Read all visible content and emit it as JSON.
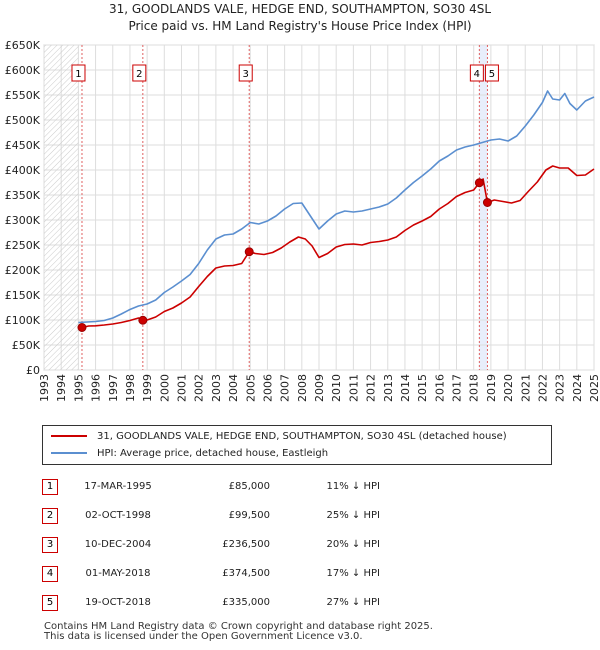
{
  "header": {
    "line1": "31, GOODLANDS VALE, HEDGE END, SOUTHAMPTON, SO30 4SL",
    "line2": "Price paid vs. HM Land Registry's House Price Index (HPI)"
  },
  "chart_data": {
    "type": "line",
    "title": "31, GOODLANDS VALE, HEDGE END, SOUTHAMPTON, SO30 4SL — Price paid vs. HM Land Registry's House Price Index (HPI)",
    "xlim": [
      1993,
      2025
    ],
    "ylim": [
      0,
      650000
    ],
    "grid": true,
    "x_ticks": [
      "1993",
      "1994",
      "1995",
      "1996",
      "1997",
      "1998",
      "1999",
      "2000",
      "2001",
      "2002",
      "2003",
      "2004",
      "2005",
      "2006",
      "2007",
      "2008",
      "2009",
      "2010",
      "2011",
      "2012",
      "2013",
      "2014",
      "2015",
      "2016",
      "2017",
      "2018",
      "2019",
      "2020",
      "2021",
      "2022",
      "2023",
      "2024",
      "2025"
    ],
    "y_ticks": [
      {
        "value": 0,
        "label": "£0"
      },
      {
        "value": 50000,
        "label": "£50K"
      },
      {
        "value": 100000,
        "label": "£100K"
      },
      {
        "value": 150000,
        "label": "£150K"
      },
      {
        "value": 200000,
        "label": "£200K"
      },
      {
        "value": 250000,
        "label": "£250K"
      },
      {
        "value": 300000,
        "label": "£300K"
      },
      {
        "value": 350000,
        "label": "£350K"
      },
      {
        "value": 400000,
        "label": "£400K"
      },
      {
        "value": 450000,
        "label": "£450K"
      },
      {
        "value": 500000,
        "label": "£500K"
      },
      {
        "value": 550000,
        "label": "£550K"
      },
      {
        "value": 600000,
        "label": "£600K"
      },
      {
        "value": 650000,
        "label": "£650K"
      }
    ],
    "series": [
      {
        "name": "31, GOODLANDS VALE, HEDGE END, SOUTHAMPTON, SO30 4SL (detached house)",
        "color": "#cc0000",
        "points": [
          [
            1995.2,
            85000
          ],
          [
            1995.6,
            88000
          ],
          [
            1996,
            88500
          ],
          [
            1996.5,
            90000
          ],
          [
            1997,
            92000
          ],
          [
            1997.5,
            95000
          ],
          [
            1998,
            99000
          ],
          [
            1998.5,
            104000
          ],
          [
            1998.75,
            99500
          ],
          [
            1999,
            100000
          ],
          [
            1999.5,
            106000
          ],
          [
            2000,
            117000
          ],
          [
            2000.5,
            124000
          ],
          [
            2001,
            134000
          ],
          [
            2001.5,
            146000
          ],
          [
            2002,
            167000
          ],
          [
            2002.5,
            187000
          ],
          [
            2003,
            204000
          ],
          [
            2003.5,
            208000
          ],
          [
            2004,
            209000
          ],
          [
            2004.5,
            213000
          ],
          [
            2004.94,
            236500
          ],
          [
            2005.3,
            233000
          ],
          [
            2005.8,
            231000
          ],
          [
            2006.3,
            235000
          ],
          [
            2006.8,
            244000
          ],
          [
            2007.3,
            256000
          ],
          [
            2007.8,
            266000
          ],
          [
            2008.2,
            262000
          ],
          [
            2008.6,
            248000
          ],
          [
            2009,
            225000
          ],
          [
            2009.5,
            233000
          ],
          [
            2010,
            246000
          ],
          [
            2010.5,
            251000
          ],
          [
            2011,
            252000
          ],
          [
            2011.5,
            250000
          ],
          [
            2012,
            255000
          ],
          [
            2012.5,
            257000
          ],
          [
            2013,
            260000
          ],
          [
            2013.5,
            266000
          ],
          [
            2014,
            279000
          ],
          [
            2014.5,
            290000
          ],
          [
            2015,
            298000
          ],
          [
            2015.5,
            307000
          ],
          [
            2016,
            322000
          ],
          [
            2016.5,
            333000
          ],
          [
            2017,
            347000
          ],
          [
            2017.5,
            355000
          ],
          [
            2018,
            360000
          ],
          [
            2018.33,
            374500
          ],
          [
            2018.55,
            382000
          ],
          [
            2018.8,
            335000
          ],
          [
            2019.2,
            340000
          ],
          [
            2019.7,
            337000
          ],
          [
            2020.2,
            334000
          ],
          [
            2020.7,
            339000
          ],
          [
            2021.2,
            358000
          ],
          [
            2021.7,
            376000
          ],
          [
            2022.2,
            400000
          ],
          [
            2022.6,
            408000
          ],
          [
            2023,
            404000
          ],
          [
            2023.5,
            404000
          ],
          [
            2024,
            389000
          ],
          [
            2024.5,
            390000
          ],
          [
            2025,
            402000
          ]
        ]
      },
      {
        "name": "HPI: Average price, detached house, Eastleigh",
        "color": "#5b8fd0",
        "points": [
          [
            1995,
            95000
          ],
          [
            1995.5,
            96000
          ],
          [
            1996,
            97000
          ],
          [
            1996.5,
            99000
          ],
          [
            1997,
            104000
          ],
          [
            1997.5,
            112000
          ],
          [
            1998,
            121000
          ],
          [
            1998.5,
            128000
          ],
          [
            1999,
            132000
          ],
          [
            1999.5,
            140000
          ],
          [
            2000,
            155000
          ],
          [
            2000.5,
            166000
          ],
          [
            2001,
            178000
          ],
          [
            2001.5,
            191000
          ],
          [
            2002,
            213000
          ],
          [
            2002.5,
            240000
          ],
          [
            2003,
            262000
          ],
          [
            2003.5,
            270000
          ],
          [
            2004,
            272000
          ],
          [
            2004.5,
            282000
          ],
          [
            2005,
            295000
          ],
          [
            2005.5,
            292000
          ],
          [
            2006,
            298000
          ],
          [
            2006.5,
            308000
          ],
          [
            2007,
            322000
          ],
          [
            2007.5,
            333000
          ],
          [
            2008,
            334000
          ],
          [
            2008.5,
            308000
          ],
          [
            2009,
            282000
          ],
          [
            2009.5,
            298000
          ],
          [
            2010,
            312000
          ],
          [
            2010.5,
            318000
          ],
          [
            2011,
            316000
          ],
          [
            2011.5,
            318000
          ],
          [
            2012,
            322000
          ],
          [
            2012.5,
            326000
          ],
          [
            2013,
            332000
          ],
          [
            2013.5,
            344000
          ],
          [
            2014,
            360000
          ],
          [
            2014.5,
            375000
          ],
          [
            2015,
            388000
          ],
          [
            2015.5,
            402000
          ],
          [
            2016,
            418000
          ],
          [
            2016.5,
            428000
          ],
          [
            2017,
            440000
          ],
          [
            2017.5,
            446000
          ],
          [
            2018,
            450000
          ],
          [
            2018.5,
            455000
          ],
          [
            2019,
            460000
          ],
          [
            2019.5,
            462000
          ],
          [
            2020,
            458000
          ],
          [
            2020.5,
            468000
          ],
          [
            2021,
            488000
          ],
          [
            2021.5,
            510000
          ],
          [
            2022,
            535000
          ],
          [
            2022.3,
            558000
          ],
          [
            2022.6,
            542000
          ],
          [
            2023,
            540000
          ],
          [
            2023.3,
            553000
          ],
          [
            2023.6,
            533000
          ],
          [
            2024,
            520000
          ],
          [
            2024.5,
            538000
          ],
          [
            2025,
            546000
          ]
        ]
      }
    ],
    "transactions": [
      {
        "num": "1",
        "date": "17-MAR-1995",
        "price": "£85,000",
        "hpi": "11% ↓ HPI",
        "x": 1995.21,
        "value": 85000
      },
      {
        "num": "2",
        "date": "02-OCT-1998",
        "price": "£99,500",
        "hpi": "25% ↓ HPI",
        "x": 1998.75,
        "value": 99500
      },
      {
        "num": "3",
        "date": "10-DEC-2004",
        "price": "£236,500",
        "hpi": "20% ↓ HPI",
        "x": 2004.94,
        "value": 236500
      },
      {
        "num": "4",
        "date": "01-MAY-2018",
        "price": "£374,500",
        "hpi": "17% ↓ HPI",
        "x": 2018.33,
        "value": 374500
      },
      {
        "num": "5",
        "date": "19-OCT-2018",
        "price": "£335,000",
        "hpi": "27% ↓ HPI",
        "x": 2018.8,
        "value": 335000
      }
    ]
  },
  "legend": {
    "items": [
      {
        "label": "31, GOODLANDS VALE, HEDGE END, SOUTHAMPTON, SO30 4SL (detached house)",
        "color": "#cc0000"
      },
      {
        "label": "HPI: Average price, detached house, Eastleigh",
        "color": "#5b8fd0"
      }
    ]
  },
  "footer": {
    "line1": "Contains HM Land Registry data © Crown copyright and database right 2025.",
    "line2": "This data is licensed under the Open Government Licence v3.0."
  }
}
